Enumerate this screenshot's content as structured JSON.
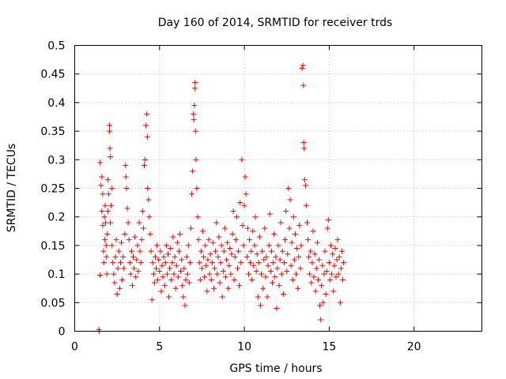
{
  "chart_data": {
    "type": "scatter",
    "title": "Day 160 of 2014, SRMTID for receiver trds",
    "xlabel": "GPS time / hours",
    "ylabel": "SRMTID / TECUs",
    "xlim": [
      0,
      24
    ],
    "ylim": [
      0,
      0.5
    ],
    "xticks": [
      0,
      5,
      10,
      15,
      20
    ],
    "yticks": [
      0,
      0.05,
      0.1,
      0.15,
      0.2,
      0.25,
      0.3,
      0.35,
      0.4,
      0.45,
      0.5
    ],
    "ytick_labels": [
      "0",
      "0.05",
      "0.1",
      "0.15",
      "0.2",
      "0.25",
      "0.3",
      "0.35",
      "0.4",
      "0.45",
      "0.5"
    ],
    "grid": true,
    "marker": "plus",
    "color": "#ff0000",
    "series": [
      {
        "name": "SRMTID",
        "points": [
          [
            1.45,
            0.0
          ],
          [
            1.42,
            0.003
          ],
          [
            1.5,
            0.098
          ],
          [
            1.5,
            0.295
          ],
          [
            1.55,
            0.255
          ],
          [
            1.6,
            0.27
          ],
          [
            1.6,
            0.21
          ],
          [
            1.65,
            0.24
          ],
          [
            1.65,
            0.185
          ],
          [
            1.7,
            0.14
          ],
          [
            1.72,
            0.12
          ],
          [
            1.75,
            0.2
          ],
          [
            1.78,
            0.16
          ],
          [
            1.8,
            0.22
          ],
          [
            1.82,
            0.19
          ],
          [
            1.85,
            0.15
          ],
          [
            1.88,
            0.13
          ],
          [
            1.9,
            0.1
          ],
          [
            1.92,
            0.17
          ],
          [
            1.95,
            0.21
          ],
          [
            1.95,
            0.265
          ],
          [
            2.0,
            0.24
          ],
          [
            2.05,
            0.35
          ],
          [
            2.05,
            0.36
          ],
          [
            2.08,
            0.32
          ],
          [
            2.1,
            0.19
          ],
          [
            2.1,
            0.305
          ],
          [
            2.15,
            0.22
          ],
          [
            2.2,
            0.25
          ],
          [
            2.2,
            0.15
          ],
          [
            2.25,
            0.12
          ],
          [
            2.3,
            0.1
          ],
          [
            2.35,
            0.085
          ],
          [
            2.4,
            0.13
          ],
          [
            2.45,
            0.16
          ],
          [
            2.5,
            0.065
          ],
          [
            2.55,
            0.11
          ],
          [
            2.6,
            0.14
          ],
          [
            2.65,
            0.075
          ],
          [
            2.7,
            0.12
          ],
          [
            2.75,
            0.155
          ],
          [
            2.8,
            0.09
          ],
          [
            2.85,
            0.13
          ],
          [
            2.9,
            0.11
          ],
          [
            2.95,
            0.17
          ],
          [
            3.0,
            0.29
          ],
          [
            3.02,
            0.27
          ],
          [
            3.05,
            0.25
          ],
          [
            3.1,
            0.215
          ],
          [
            3.15,
            0.19
          ],
          [
            3.2,
            0.16
          ],
          [
            3.25,
            0.12
          ],
          [
            3.3,
            0.1
          ],
          [
            3.35,
            0.14
          ],
          [
            3.4,
            0.08
          ],
          [
            3.45,
            0.13
          ],
          [
            3.5,
            0.11
          ],
          [
            3.55,
            0.165
          ],
          [
            3.6,
            0.095
          ],
          [
            3.65,
            0.125
          ],
          [
            3.7,
            0.15
          ],
          [
            3.75,
            0.105
          ],
          [
            3.8,
            0.19
          ],
          [
            3.85,
            0.14
          ],
          [
            3.9,
            0.12
          ],
          [
            3.95,
            0.16
          ],
          [
            4.0,
            0.21
          ],
          [
            4.05,
            0.18
          ],
          [
            4.1,
            0.29
          ],
          [
            4.15,
            0.3
          ],
          [
            4.2,
            0.36
          ],
          [
            4.25,
            0.38
          ],
          [
            4.28,
            0.34
          ],
          [
            4.3,
            0.25
          ],
          [
            4.35,
            0.23
          ],
          [
            4.4,
            0.2
          ],
          [
            4.45,
            0.17
          ],
          [
            4.5,
            0.14
          ],
          [
            4.55,
            0.055
          ],
          [
            4.6,
            0.12
          ],
          [
            4.65,
            0.1
          ],
          [
            4.7,
            0.085
          ],
          [
            4.75,
            0.13
          ],
          [
            4.8,
            0.11
          ],
          [
            4.85,
            0.15
          ],
          [
            4.9,
            0.09
          ],
          [
            4.95,
            0.125
          ],
          [
            5.0,
            0.105
          ],
          [
            5.05,
            0.14
          ],
          [
            5.1,
            0.07
          ],
          [
            5.15,
            0.115
          ],
          [
            5.2,
            0.095
          ],
          [
            5.25,
            0.13
          ],
          [
            5.3,
            0.08
          ],
          [
            5.35,
            0.12
          ],
          [
            5.4,
            0.15
          ],
          [
            5.45,
            0.1
          ],
          [
            5.5,
            0.135
          ],
          [
            5.55,
            0.06
          ],
          [
            5.6,
            0.11
          ],
          [
            5.65,
            0.145
          ],
          [
            5.7,
            0.09
          ],
          [
            5.75,
            0.12
          ],
          [
            5.8,
            0.165
          ],
          [
            5.85,
            0.1
          ],
          [
            5.9,
            0.13
          ],
          [
            5.95,
            0.075
          ],
          [
            6.0,
            0.115
          ],
          [
            6.05,
            0.155
          ],
          [
            6.1,
            0.095
          ],
          [
            6.15,
            0.14
          ],
          [
            6.2,
            0.17
          ],
          [
            6.25,
            0.105
          ],
          [
            6.3,
            0.125
          ],
          [
            6.35,
            0.08
          ],
          [
            6.4,
            0.06
          ],
          [
            6.45,
            0.11
          ],
          [
            6.5,
            0.045
          ],
          [
            6.55,
            0.09
          ],
          [
            6.6,
            0.13
          ],
          [
            6.65,
            0.1
          ],
          [
            6.7,
            0.15
          ],
          [
            6.75,
            0.085
          ],
          [
            6.8,
            0.12
          ],
          [
            6.85,
            0.18
          ],
          [
            6.9,
            0.24
          ],
          [
            6.95,
            0.28
          ],
          [
            7.0,
            0.38
          ],
          [
            7.02,
            0.37
          ],
          [
            7.05,
            0.395
          ],
          [
            7.08,
            0.425
          ],
          [
            7.1,
            0.435
          ],
          [
            7.12,
            0.35
          ],
          [
            7.15,
            0.3
          ],
          [
            7.2,
            0.25
          ],
          [
            7.25,
            0.2
          ],
          [
            7.3,
            0.16
          ],
          [
            7.35,
            0.12
          ],
          [
            7.4,
            0.09
          ],
          [
            7.45,
            0.14
          ],
          [
            7.5,
            0.11
          ],
          [
            7.55,
            0.175
          ],
          [
            7.6,
            0.13
          ],
          [
            7.65,
            0.095
          ],
          [
            7.7,
            0.15
          ],
          [
            7.75,
            0.115
          ],
          [
            7.8,
            0.07
          ],
          [
            7.85,
            0.125
          ],
          [
            7.9,
            0.16
          ],
          [
            7.95,
            0.1
          ],
          [
            8.0,
            0.135
          ],
          [
            8.05,
            0.09
          ],
          [
            8.1,
            0.12
          ],
          [
            8.15,
            0.155
          ],
          [
            8.2,
            0.075
          ],
          [
            8.25,
            0.11
          ],
          [
            8.3,
            0.14
          ],
          [
            8.35,
            0.19
          ],
          [
            8.4,
            0.1
          ],
          [
            8.45,
            0.13
          ],
          [
            8.5,
            0.165
          ],
          [
            8.55,
            0.085
          ],
          [
            8.6,
            0.12
          ],
          [
            8.65,
            0.15
          ],
          [
            8.7,
            0.06
          ],
          [
            8.75,
            0.105
          ],
          [
            8.8,
            0.14
          ],
          [
            8.85,
            0.18
          ],
          [
            8.9,
            0.095
          ],
          [
            8.95,
            0.125
          ],
          [
            9.0,
            0.155
          ],
          [
            9.05,
            0.075
          ],
          [
            9.1,
            0.115
          ],
          [
            9.15,
            0.145
          ],
          [
            9.2,
            0.1
          ],
          [
            9.25,
            0.135
          ],
          [
            9.3,
            0.17
          ],
          [
            9.35,
            0.21
          ],
          [
            9.4,
            0.09
          ],
          [
            9.45,
            0.13
          ],
          [
            9.5,
            0.16
          ],
          [
            9.55,
            0.2
          ],
          [
            9.6,
            0.11
          ],
          [
            9.65,
            0.14
          ],
          [
            9.7,
            0.08
          ],
          [
            9.75,
            0.225
          ],
          [
            9.8,
            0.12
          ],
          [
            9.85,
            0.3
          ],
          [
            9.9,
            0.185
          ],
          [
            9.95,
            0.15
          ],
          [
            10.0,
            0.22
          ],
          [
            10.05,
            0.27
          ],
          [
            10.1,
            0.24
          ],
          [
            10.15,
            0.13
          ],
          [
            10.2,
            0.18
          ],
          [
            10.25,
            0.1
          ],
          [
            10.3,
            0.16
          ],
          [
            10.35,
            0.12
          ],
          [
            10.4,
            0.14
          ],
          [
            10.45,
            0.09
          ],
          [
            10.5,
            0.175
          ],
          [
            10.55,
            0.115
          ],
          [
            10.6,
            0.15
          ],
          [
            10.65,
            0.2
          ],
          [
            10.7,
            0.105
          ],
          [
            10.75,
            0.135
          ],
          [
            10.8,
            0.06
          ],
          [
            10.85,
            0.12
          ],
          [
            10.9,
            0.165
          ],
          [
            10.95,
            0.045
          ],
          [
            11.0,
            0.1
          ],
          [
            11.05,
            0.14
          ],
          [
            11.1,
            0.075
          ],
          [
            11.15,
            0.125
          ],
          [
            11.2,
            0.18
          ],
          [
            11.25,
            0.095
          ],
          [
            11.3,
            0.13
          ],
          [
            11.35,
            0.06
          ],
          [
            11.4,
            0.115
          ],
          [
            11.45,
            0.15
          ],
          [
            11.5,
            0.205
          ],
          [
            11.55,
            0.105
          ],
          [
            11.6,
            0.14
          ],
          [
            11.65,
            0.085
          ],
          [
            11.7,
            0.12
          ],
          [
            11.75,
            0.17
          ],
          [
            11.8,
            0.095
          ],
          [
            11.85,
            0.13
          ],
          [
            11.9,
            0.04
          ],
          [
            11.95,
            0.11
          ],
          [
            12.0,
            0.15
          ],
          [
            12.05,
            0.08
          ],
          [
            12.1,
            0.125
          ],
          [
            12.15,
            0.19
          ],
          [
            12.2,
            0.1
          ],
          [
            12.25,
            0.14
          ],
          [
            12.3,
            0.065
          ],
          [
            12.35,
            0.12
          ],
          [
            12.4,
            0.16
          ],
          [
            12.45,
            0.21
          ],
          [
            12.5,
            0.105
          ],
          [
            12.55,
            0.135
          ],
          [
            12.6,
            0.25
          ],
          [
            12.65,
            0.18
          ],
          [
            12.7,
            0.23
          ],
          [
            12.75,
            0.115
          ],
          [
            12.8,
            0.155
          ],
          [
            12.85,
            0.09
          ],
          [
            12.9,
            0.2
          ],
          [
            12.95,
            0.125
          ],
          [
            13.0,
            0.17
          ],
          [
            13.05,
            0.1
          ],
          [
            13.1,
            0.145
          ],
          [
            13.15,
            0.075
          ],
          [
            13.2,
            0.13
          ],
          [
            13.25,
            0.185
          ],
          [
            13.3,
            0.11
          ],
          [
            13.35,
            0.15
          ],
          [
            13.4,
            0.46
          ],
          [
            13.45,
            0.465
          ],
          [
            13.48,
            0.43
          ],
          [
            13.5,
            0.33
          ],
          [
            13.52,
            0.32
          ],
          [
            13.55,
            0.265
          ],
          [
            13.6,
            0.255
          ],
          [
            13.65,
            0.22
          ],
          [
            13.7,
            0.19
          ],
          [
            13.75,
            0.16
          ],
          [
            13.8,
            0.13
          ],
          [
            13.85,
            0.1
          ],
          [
            13.9,
            0.14
          ],
          [
            13.95,
            0.085
          ],
          [
            14.0,
            0.12
          ],
          [
            14.05,
            0.175
          ],
          [
            14.1,
            0.095
          ],
          [
            14.15,
            0.135
          ],
          [
            14.2,
            0.07
          ],
          [
            14.25,
            0.11
          ],
          [
            14.3,
            0.155
          ],
          [
            14.35,
            0.09
          ],
          [
            14.4,
            0.125
          ],
          [
            14.45,
            0.045
          ],
          [
            14.5,
            0.02
          ],
          [
            14.55,
            0.08
          ],
          [
            14.6,
            0.115
          ],
          [
            14.65,
            0.05
          ],
          [
            14.7,
            0.1
          ],
          [
            14.75,
            0.14
          ],
          [
            14.8,
            0.065
          ],
          [
            14.85,
            0.105
          ],
          [
            14.9,
            0.18
          ],
          [
            14.95,
            0.195
          ],
          [
            15.0,
            0.12
          ],
          [
            15.05,
            0.09
          ],
          [
            15.1,
            0.15
          ],
          [
            15.15,
            0.1
          ],
          [
            15.2,
            0.135
          ],
          [
            15.25,
            0.07
          ],
          [
            15.3,
            0.115
          ],
          [
            15.35,
            0.145
          ],
          [
            15.4,
            0.095
          ],
          [
            15.45,
            0.125
          ],
          [
            15.5,
            0.16
          ],
          [
            15.55,
            0.1
          ],
          [
            15.6,
            0.13
          ],
          [
            15.65,
            0.05
          ],
          [
            15.7,
            0.11
          ],
          [
            15.75,
            0.14
          ],
          [
            15.8,
            0.09
          ],
          [
            15.85,
            0.12
          ]
        ]
      }
    ]
  }
}
